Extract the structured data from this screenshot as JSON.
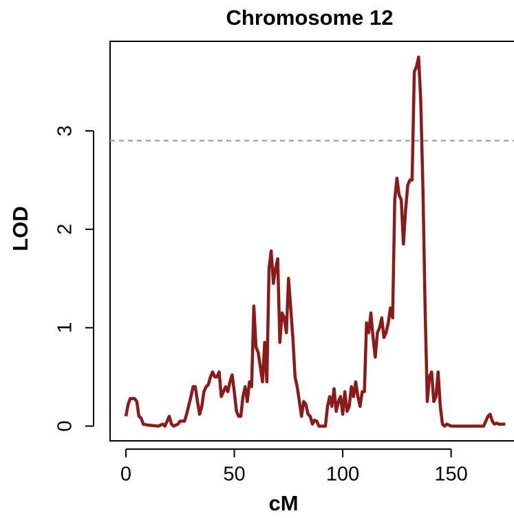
{
  "chart_data": {
    "type": "line",
    "title": "Chromosome 12",
    "xlabel": "cM",
    "ylabel": "LOD",
    "x": [
      0,
      1,
      2,
      4,
      5,
      6,
      7,
      8,
      10,
      15,
      17,
      18,
      19,
      20,
      21,
      22,
      24,
      25,
      27,
      28,
      30,
      31,
      32,
      33,
      34,
      35,
      36,
      37,
      38,
      39,
      40,
      41,
      42,
      43,
      44,
      45,
      46,
      47,
      48,
      49,
      50,
      51,
      52,
      53,
      54,
      55,
      56,
      57,
      58,
      59,
      60,
      61,
      62,
      63,
      64,
      65,
      66,
      67,
      68,
      69,
      70,
      71,
      72,
      73,
      74,
      75,
      76,
      77,
      78,
      79,
      80,
      81,
      82,
      83,
      84,
      85,
      86,
      87,
      88,
      89,
      92,
      93,
      94,
      95,
      96,
      97,
      98,
      99,
      100,
      101,
      102,
      103,
      104,
      105,
      106,
      107,
      108,
      109,
      110,
      111,
      112,
      113,
      114,
      115,
      116,
      117,
      118,
      119,
      120,
      121,
      122,
      123,
      124,
      125,
      126,
      127,
      128,
      129,
      130,
      131,
      132,
      133,
      134,
      135,
      136,
      137,
      138,
      139,
      140,
      141,
      142,
      143,
      144,
      145,
      146,
      147,
      148,
      150,
      165,
      166,
      167,
      168,
      169,
      170,
      171,
      172,
      175
    ],
    "series": [
      {
        "name": "LOD",
        "color": "#8b1a1a",
        "values": [
          0.1,
          0.22,
          0.28,
          0.28,
          0.25,
          0.1,
          0.08,
          0.02,
          0.01,
          0,
          0.02,
          0,
          0.05,
          0.1,
          0.02,
          0,
          0.02,
          0.05,
          0.05,
          0.12,
          0.3,
          0.4,
          0.4,
          0.25,
          0.12,
          0.2,
          0.35,
          0.4,
          0.42,
          0.5,
          0.55,
          0.5,
          0.5,
          0.55,
          0.3,
          0.35,
          0.4,
          0.35,
          0.45,
          0.52,
          0.35,
          0.15,
          0.1,
          0.1,
          0.3,
          0.4,
          0.25,
          0.45,
          0.4,
          1.22,
          0.8,
          0.75,
          0.6,
          0.45,
          0.85,
          0.45,
          1.6,
          1.78,
          1.45,
          1.6,
          1.7,
          0.85,
          1.15,
          1.1,
          0.95,
          1.5,
          1.2,
          0.9,
          0.5,
          0.4,
          0.25,
          0.1,
          0.25,
          0.22,
          0.12,
          0.1,
          0.02,
          0.06,
          0.05,
          0,
          0,
          0.2,
          0.3,
          0.2,
          0.38,
          0.15,
          0.25,
          0.3,
          0.12,
          0.35,
          0.15,
          0.2,
          0.4,
          0.3,
          0.45,
          0.3,
          0.2,
          0.35,
          0.35,
          1.05,
          0.95,
          1.15,
          0.9,
          0.7,
          0.95,
          1,
          1.1,
          0.9,
          0.95,
          1.05,
          1.2,
          1.1,
          2.3,
          2.52,
          2.35,
          2.3,
          1.85,
          2.2,
          2.45,
          2.5,
          2.5,
          3.6,
          3.65,
          3.75,
          3.3,
          2.4,
          1.2,
          0.25,
          0.5,
          0.55,
          0.25,
          0.3,
          0.55,
          0.2,
          0.02,
          0,
          0.02,
          0,
          0,
          0.05,
          0.1,
          0.12,
          0.05,
          0.02,
          0.03,
          0.02,
          0.02
        ]
      }
    ],
    "threshold": 2.9,
    "xlim": [
      -7.3,
      179
    ],
    "ylim": [
      -0.15,
      3.91
    ],
    "xticks": [
      0,
      50,
      100,
      150
    ],
    "yticks": [
      0,
      1,
      2,
      3
    ]
  }
}
